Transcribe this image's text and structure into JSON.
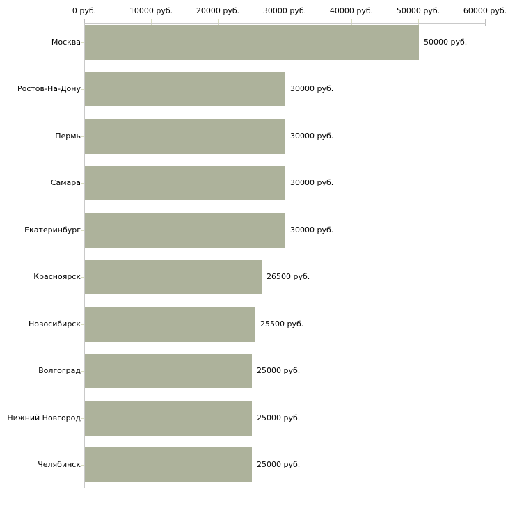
{
  "chart_data": {
    "type": "bar",
    "orientation": "horizontal",
    "title": "",
    "xlabel": "",
    "ylabel": "",
    "unit": "руб.",
    "grid": "off",
    "legend": "none",
    "categories": [
      "Москва",
      "Ростов-На-Дону",
      "Пермь",
      "Самара",
      "Екатеринбург",
      "Красноярск",
      "Новосибирск",
      "Волгоград",
      "Нижний Новгород",
      "Челябинск"
    ],
    "values": [
      50000,
      30000,
      30000,
      30000,
      30000,
      26500,
      25500,
      25000,
      25000,
      25000
    ],
    "value_labels": [
      "50000 руб.",
      "30000 руб.",
      "30000 руб.",
      "30000 руб.",
      "30000 руб.",
      "26500 руб.",
      "25500 руб.",
      "25000 руб.",
      "25000 руб.",
      "25000 руб."
    ],
    "x_axis": {
      "position": "top",
      "range": [
        0,
        60000
      ],
      "ticks": [
        0,
        10000,
        20000,
        30000,
        40000,
        50000,
        60000
      ],
      "tick_labels": [
        "0 руб.",
        "10000 руб.",
        "20000 руб.",
        "30000 руб.",
        "40000 руб.",
        "50000 руб.",
        "60000 руб."
      ]
    },
    "colors": {
      "bar": "#adb29b",
      "axis": "#c9c9c9",
      "tick_middle": "#d9ddc0",
      "tick_end": "#bdbdbd",
      "text": "#000000",
      "background": "#ffffff"
    }
  }
}
